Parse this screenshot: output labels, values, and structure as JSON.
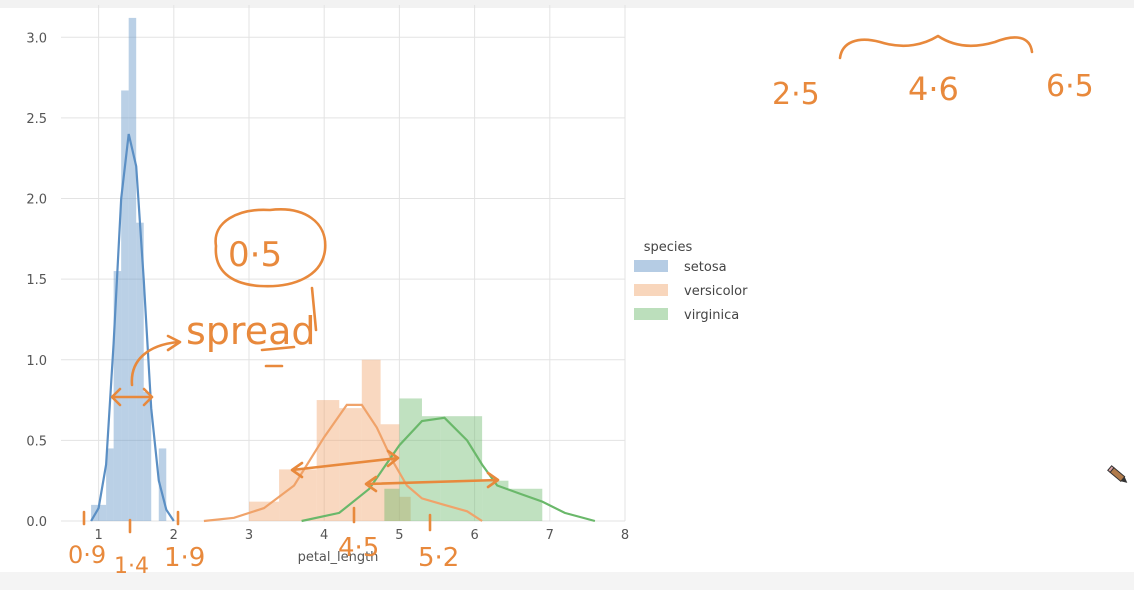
{
  "chart_data": {
    "type": "histogram",
    "xlabel": "petal_length",
    "ylabel": "",
    "xlim": [
      0.5,
      8.0
    ],
    "ylim": [
      0.0,
      3.2
    ],
    "grid": true,
    "x_ticks": [
      "1",
      "2",
      "3",
      "4",
      "5",
      "6",
      "7",
      "8"
    ],
    "y_ticks": [
      "0.0",
      "0.5",
      "1.0",
      "1.5",
      "2.0",
      "2.5",
      "3.0"
    ],
    "legend": {
      "title": "species",
      "placement": "right"
    },
    "series": [
      {
        "name": "setosa",
        "color": "#5b8fc4",
        "bins": [
          {
            "x0": 0.9,
            "x1": 1.1,
            "y": 0.1
          },
          {
            "x0": 1.1,
            "x1": 1.2,
            "y": 0.45
          },
          {
            "x0": 1.2,
            "x1": 1.3,
            "y": 1.55
          },
          {
            "x0": 1.3,
            "x1": 1.4,
            "y": 2.67
          },
          {
            "x0": 1.4,
            "x1": 1.5,
            "y": 3.12
          },
          {
            "x0": 1.5,
            "x1": 1.6,
            "y": 1.85
          },
          {
            "x0": 1.6,
            "x1": 1.7,
            "y": 0.8
          },
          {
            "x0": 1.8,
            "x1": 1.9,
            "y": 0.45
          }
        ],
        "kde": [
          [
            0.9,
            0.0
          ],
          [
            1.0,
            0.08
          ],
          [
            1.1,
            0.35
          ],
          [
            1.2,
            1.1
          ],
          [
            1.3,
            2.0
          ],
          [
            1.4,
            2.4
          ],
          [
            1.5,
            2.2
          ],
          [
            1.6,
            1.5
          ],
          [
            1.7,
            0.7
          ],
          [
            1.8,
            0.25
          ],
          [
            1.9,
            0.07
          ],
          [
            2.0,
            0.0
          ]
        ]
      },
      {
        "name": "versicolor",
        "color": "#f0a36a",
        "bins": [
          {
            "x0": 3.0,
            "x1": 3.4,
            "y": 0.12
          },
          {
            "x0": 3.4,
            "x1": 3.9,
            "y": 0.32
          },
          {
            "x0": 3.9,
            "x1": 4.2,
            "y": 0.75
          },
          {
            "x0": 4.2,
            "x1": 4.5,
            "y": 0.7
          },
          {
            "x0": 4.5,
            "x1": 4.75,
            "y": 1.0
          },
          {
            "x0": 4.75,
            "x1": 5.0,
            "y": 0.6
          },
          {
            "x0": 5.0,
            "x1": 5.15,
            "y": 0.15
          }
        ],
        "kde": [
          [
            2.4,
            0.0
          ],
          [
            2.8,
            0.02
          ],
          [
            3.2,
            0.08
          ],
          [
            3.6,
            0.22
          ],
          [
            4.0,
            0.52
          ],
          [
            4.3,
            0.72
          ],
          [
            4.5,
            0.72
          ],
          [
            4.7,
            0.58
          ],
          [
            4.9,
            0.38
          ],
          [
            5.1,
            0.22
          ],
          [
            5.3,
            0.14
          ],
          [
            5.6,
            0.1
          ],
          [
            5.9,
            0.06
          ],
          [
            6.1,
            0.0
          ]
        ]
      },
      {
        "name": "virginica",
        "color": "#6ab86a",
        "bins": [
          {
            "x0": 4.8,
            "x1": 5.0,
            "y": 0.2
          },
          {
            "x0": 5.0,
            "x1": 5.3,
            "y": 0.76
          },
          {
            "x0": 5.3,
            "x1": 5.55,
            "y": 0.65
          },
          {
            "x0": 5.55,
            "x1": 6.1,
            "y": 0.65
          },
          {
            "x0": 6.1,
            "x1": 6.45,
            "y": 0.25
          },
          {
            "x0": 6.45,
            "x1": 6.9,
            "y": 0.2
          }
        ],
        "kde": [
          [
            3.7,
            0.0
          ],
          [
            4.2,
            0.05
          ],
          [
            4.6,
            0.2
          ],
          [
            5.0,
            0.47
          ],
          [
            5.3,
            0.62
          ],
          [
            5.6,
            0.64
          ],
          [
            5.9,
            0.5
          ],
          [
            6.1,
            0.35
          ],
          [
            6.3,
            0.22
          ],
          [
            6.6,
            0.17
          ],
          [
            6.9,
            0.12
          ],
          [
            7.2,
            0.05
          ],
          [
            7.6,
            0.0
          ]
        ]
      }
    ]
  },
  "annotations": {
    "top_values": [
      "2·5",
      "4·6",
      "6·5"
    ],
    "circled_value": "0·5",
    "spread_label": "spread",
    "bottom_values": [
      "0·9",
      "1·4",
      "1·9",
      "4·5",
      "5·2"
    ]
  },
  "colors": {
    "ink": "#e8893c",
    "grid": "#e3e3e3",
    "axis_text": "#555555"
  },
  "icons": {
    "cursor": "pencil-icon"
  }
}
